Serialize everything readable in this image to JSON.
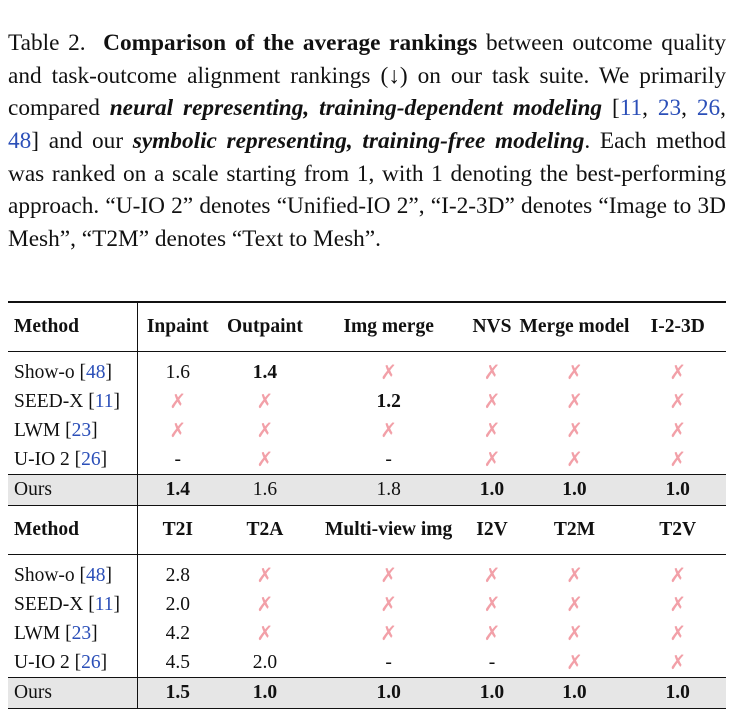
{
  "caption": {
    "label": "Table 2.",
    "title": "Comparison of the average rankings",
    "t1": " between outcome quality and task-outcome alignment rankings (↓) on our task suite. We primarily compared ",
    "neural": "neural representing, training-dependent modeling",
    "t2": " [",
    "c11": "11",
    "sep1": ", ",
    "c23": "23",
    "sep2": ", ",
    "c26": "26",
    "sep3": ", ",
    "c48": "48",
    "t3": "] and our ",
    "symbolic": "symbolic representing, training-free modeling",
    "t4": ". Each method was ranked on a scale starting from 1, with 1 denoting the best-performing approach. “U-IO 2” denotes “Unified-IO 2”, “I-2-3D” denotes “Image to 3D Mesh”, “T2M” denotes “Text to Mesh”."
  },
  "table1": {
    "headers": [
      "Method",
      "Inpaint",
      "Outpaint",
      "Img merge",
      "NVS",
      "Merge model",
      "I-2-3D"
    ],
    "rows": [
      {
        "name": "Show-o",
        "cite": "48",
        "cells": [
          "1.6",
          "1.4",
          "✗",
          "✗",
          "✗",
          "✗"
        ]
      },
      {
        "name": "SEED-X",
        "cite": "11",
        "cells": [
          "✗",
          "✗",
          "1.2",
          "✗",
          "✗",
          "✗"
        ]
      },
      {
        "name": "LWM",
        "cite": "23",
        "cells": [
          "✗",
          "✗",
          "✗",
          "✗",
          "✗",
          "✗"
        ]
      },
      {
        "name": "U-IO 2",
        "cite": "26",
        "cells": [
          "-",
          "✗",
          "-",
          "✗",
          "✗",
          "✗"
        ]
      },
      {
        "name": "Ours",
        "cite": "",
        "cells": [
          "1.4",
          "1.6",
          "1.8",
          "1.0",
          "1.0",
          "1.0"
        ]
      }
    ]
  },
  "table2": {
    "headers": [
      "Method",
      "T2I",
      "T2A",
      "Multi-view img",
      "I2V",
      "T2M",
      "T2V"
    ],
    "rows": [
      {
        "name": "Show-o",
        "cite": "48",
        "cells": [
          "2.8",
          "✗",
          "✗",
          "✗",
          "✗",
          "✗"
        ]
      },
      {
        "name": "SEED-X",
        "cite": "11",
        "cells": [
          "2.0",
          "✗",
          "✗",
          "✗",
          "✗",
          "✗"
        ]
      },
      {
        "name": "LWM",
        "cite": "23",
        "cells": [
          "4.2",
          "✗",
          "✗",
          "✗",
          "✗",
          "✗"
        ]
      },
      {
        "name": "U-IO 2",
        "cite": "26",
        "cells": [
          "4.5",
          "2.0",
          "-",
          "-",
          "✗",
          "✗"
        ]
      },
      {
        "name": "Ours",
        "cite": "",
        "cells": [
          "1.5",
          "1.0",
          "1.0",
          "1.0",
          "1.0",
          "1.0"
        ]
      }
    ]
  },
  "colors": {
    "cross": "#f2a0a8",
    "cite": "#2b4fb8",
    "highlight_row": "#e6e6e6"
  }
}
